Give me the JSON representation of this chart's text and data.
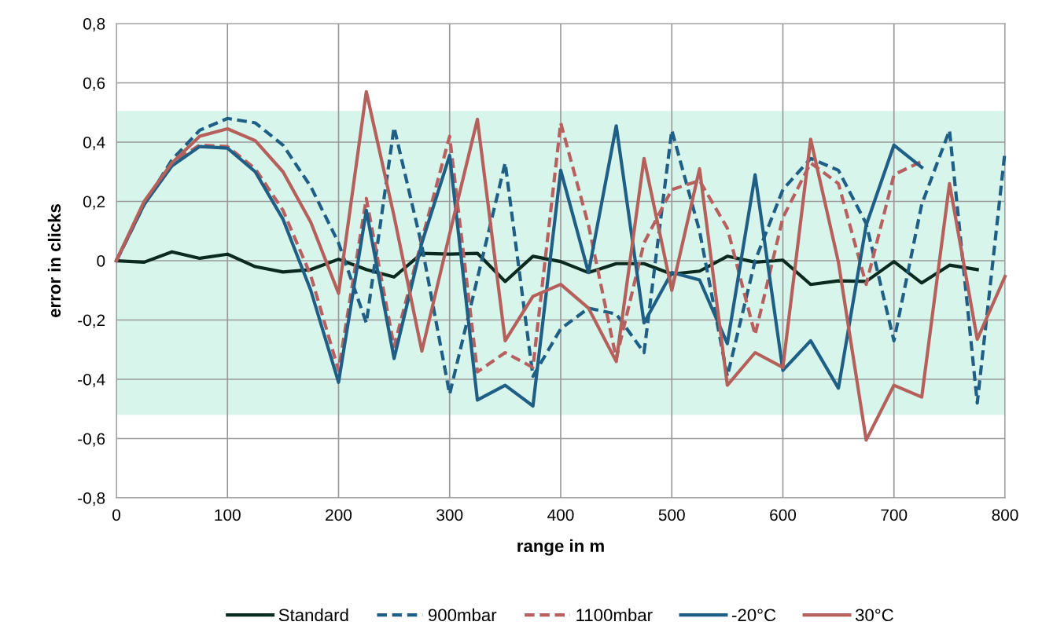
{
  "chart_data": {
    "type": "line",
    "xlabel": "range in m",
    "ylabel": "error in clicks",
    "x": [
      0,
      25,
      50,
      75,
      100,
      125,
      150,
      175,
      200,
      225,
      250,
      275,
      300,
      325,
      350,
      375,
      400,
      425,
      450,
      475,
      500,
      525,
      550,
      575,
      600,
      625,
      650,
      675,
      700,
      725,
      750,
      775,
      800
    ],
    "series": [
      {
        "name": "Standard",
        "color": "#0b2a1f",
        "line_style": "solid",
        "values": [
          0,
          -0.005,
          0.03,
          0.008,
          0.022,
          -0.02,
          -0.038,
          -0.03,
          0.005,
          -0.03,
          -0.055,
          0.025,
          0.022,
          0.025,
          -0.07,
          0.015,
          -0.003,
          -0.04,
          -0.01,
          -0.01,
          -0.045,
          -0.035,
          0.015,
          -0.005,
          0.002,
          -0.08,
          -0.068,
          -0.07,
          -0.003,
          -0.075,
          -0.015,
          -0.03,
          null
        ]
      },
      {
        "name": "900mbar",
        "color": "#1f5f85",
        "line_style": "dashed",
        "values": [
          0,
          0.19,
          0.34,
          0.44,
          0.48,
          0.465,
          0.39,
          0.25,
          0.06,
          -0.21,
          0.45,
          0.05,
          -0.45,
          -0.06,
          0.33,
          -0.39,
          -0.23,
          -0.16,
          -0.18,
          -0.31,
          0.44,
          0.1,
          -0.39,
          0.0,
          0.24,
          0.345,
          0.305,
          0.125,
          -0.27,
          0.19,
          0.44,
          -0.48,
          0.37
        ]
      },
      {
        "name": "1100mbar",
        "color": "#b86060",
        "line_style": "dashed",
        "values": [
          0,
          0.19,
          0.33,
          0.39,
          0.385,
          0.31,
          0.17,
          -0.05,
          -0.37,
          0.21,
          -0.29,
          0.07,
          0.42,
          -0.375,
          -0.31,
          -0.36,
          0.465,
          0.12,
          -0.33,
          0.06,
          0.24,
          0.27,
          0.11,
          -0.25,
          0.145,
          0.33,
          0.26,
          -0.08,
          0.29,
          0.335,
          null,
          null,
          null
        ]
      },
      {
        "name": "-20°C",
        "color": "#1f5f85",
        "line_style": "solid",
        "values": [
          0,
          0.19,
          0.32,
          0.385,
          0.38,
          0.3,
          0.14,
          -0.1,
          -0.41,
          0.17,
          -0.33,
          0.06,
          0.355,
          -0.47,
          -0.42,
          -0.49,
          0.305,
          -0.04,
          0.455,
          -0.21,
          -0.04,
          -0.065,
          -0.28,
          0.29,
          -0.37,
          -0.27,
          -0.43,
          0.12,
          0.39,
          0.315,
          null,
          null,
          null
        ]
      },
      {
        "name": "30°C",
        "color": "#b5605a",
        "line_style": "solid",
        "values": [
          0,
          0.2,
          0.33,
          0.42,
          0.445,
          0.405,
          0.3,
          0.13,
          -0.11,
          0.57,
          0.15,
          -0.305,
          0.09,
          0.477,
          -0.27,
          -0.12,
          -0.08,
          -0.16,
          -0.34,
          0.345,
          -0.1,
          0.31,
          -0.42,
          -0.31,
          -0.36,
          0.41,
          -0.005,
          -0.605,
          -0.42,
          -0.46,
          0.26,
          -0.265,
          -0.053
        ]
      }
    ],
    "xlim": [
      0,
      800
    ],
    "xticks": [
      0,
      100,
      200,
      300,
      400,
      500,
      600,
      700,
      800
    ],
    "ylim": [
      -0.8,
      0.8
    ],
    "yticks": [
      {
        "value": -0.8,
        "label": "-0,8"
      },
      {
        "value": -0.6,
        "label": "-0,6"
      },
      {
        "value": -0.4,
        "label": "-0,4"
      },
      {
        "value": -0.2,
        "label": "-0,2"
      },
      {
        "value": 0,
        "label": "0"
      },
      {
        "value": 0.2,
        "label": "0,2"
      },
      {
        "value": 0.4,
        "label": "0,4"
      },
      {
        "value": 0.6,
        "label": "0,6"
      },
      {
        "value": 0.8,
        "label": "0,8"
      }
    ],
    "bands": [
      {
        "axis": "y",
        "from": -0.52,
        "to": 0.505,
        "color": "#d8f5ec"
      }
    ],
    "grid": true,
    "legend": "bottom"
  }
}
